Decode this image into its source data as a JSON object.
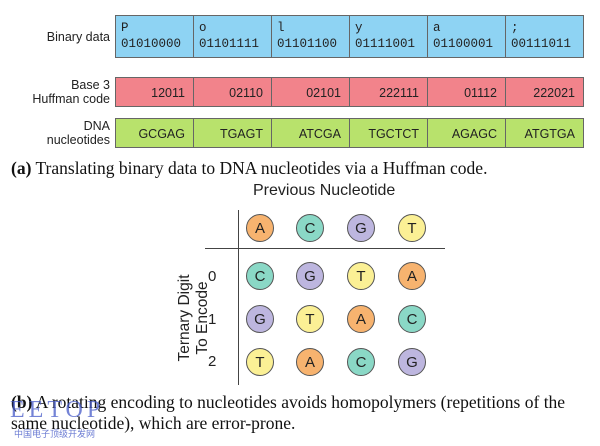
{
  "panel_a": {
    "labels": {
      "binary": "Binary data",
      "huffman_line1": "Base 3",
      "huffman_line2": "Huffman code",
      "dna_line1": "DNA",
      "dna_line2": "nucleotides"
    },
    "columns": [
      {
        "char": "P",
        "bits": "01010000",
        "huffman": "12011",
        "dna": "GCGAG"
      },
      {
        "char": "o",
        "bits": "01101111",
        "huffman": "02110",
        "dna": "TGAGT"
      },
      {
        "char": "l",
        "bits": "01101100",
        "huffman": "02101",
        "dna": "ATCGA"
      },
      {
        "char": "y",
        "bits": "01111001",
        "huffman": "222111",
        "dna": "TGCTCT"
      },
      {
        "char": "a",
        "bits": "01100001",
        "huffman": "01112",
        "dna": "AGAGC"
      },
      {
        "char": ";",
        "bits": "00111011",
        "huffman": "222021",
        "dna": "ATGTGA"
      }
    ],
    "caption_label": "(a)",
    "caption_text": " Translating binary data to DNA nucleotides via a Huffman code."
  },
  "panel_b": {
    "column_title": "Previous Nucleotide",
    "row_title_line1": "Ternary Digit",
    "row_title_line2": "To Encode",
    "header": [
      "A",
      "C",
      "G",
      "T"
    ],
    "rows": [
      {
        "digit": "0",
        "cells": [
          "C",
          "G",
          "T",
          "A"
        ]
      },
      {
        "digit": "1",
        "cells": [
          "G",
          "T",
          "A",
          "C"
        ]
      },
      {
        "digit": "2",
        "cells": [
          "T",
          "A",
          "C",
          "G"
        ]
      }
    ],
    "caption_label": "(b)",
    "caption_text": " A rotating encoding to nucleotides avoids homopolymers (repetitions of the same nucleotide), which are error-prone.",
    "nucleotide_colors": {
      "A": "#f7b36f",
      "C": "#8ad8c6",
      "G": "#bdb6df",
      "T": "#fbf095"
    }
  },
  "watermark": {
    "main": "EETOP",
    "sub": "中国电子顶级开发网"
  }
}
